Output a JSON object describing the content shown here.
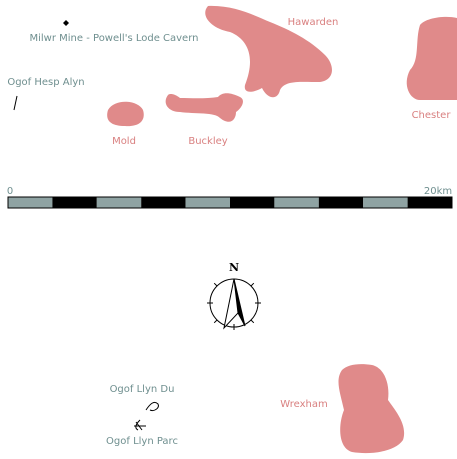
{
  "towns": [
    {
      "label": "Hawarden"
    },
    {
      "label": "Chester"
    },
    {
      "label": "Mold"
    },
    {
      "label": "Buckley"
    },
    {
      "label": "Wrexham"
    }
  ],
  "caves": [
    {
      "label": "Milwr Mine - Powell's Lode Cavern"
    },
    {
      "label": "Ogof Hesp Alyn"
    },
    {
      "label": "Ogof Llyn Du"
    },
    {
      "label": "Ogof Llyn Parc"
    }
  ],
  "scale_bar": {
    "start_label": "0",
    "end_label": "20km"
  },
  "compass": {
    "label": "N"
  }
}
